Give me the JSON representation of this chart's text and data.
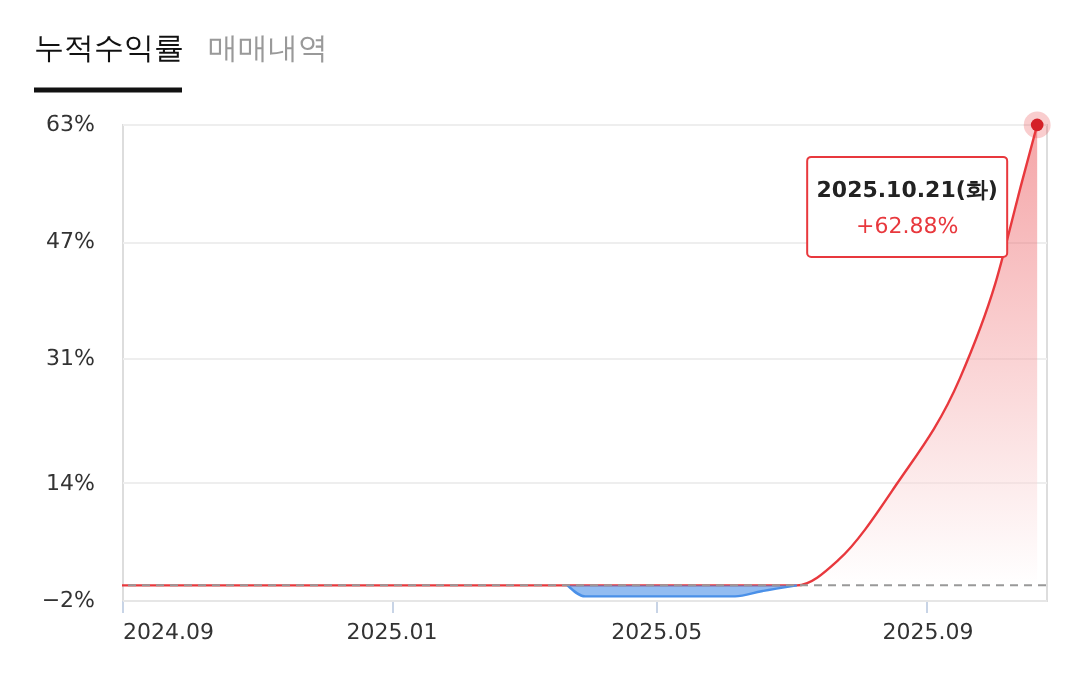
{
  "chart_data": {
    "type": "area",
    "title": "누적수익률",
    "subtitle": "매매내역",
    "xlim": [
      "2024-09-01",
      "2025-10-25"
    ],
    "xticks": [
      {
        "value": "2024-09-01",
        "label": "2024.09"
      },
      {
        "value": "2025-01-01",
        "label": "2025.01"
      },
      {
        "value": "2025-05-01",
        "label": "2025.05"
      },
      {
        "value": "2025-09-01",
        "label": "2025.09"
      }
    ],
    "ylim": [
      -2,
      63
    ],
    "yticks": [
      {
        "value": -2,
        "label": "−2%"
      },
      {
        "value": 14,
        "label": "14%"
      },
      {
        "value": 31,
        "label": "31%"
      },
      {
        "value": 47,
        "label": "47%"
      },
      {
        "value": 63,
        "label": "63%"
      }
    ],
    "grid": "y",
    "legend": false,
    "series": [
      {
        "color": "#e8383d",
        "x": [
          "2024-09-01",
          "2025-03-22",
          "2025-07-04",
          "2025-07-23",
          "2025-08-18",
          "2025-09-16",
          "2025-10-02",
          "2025-10-14",
          "2025-10-21"
        ],
        "values": [
          0,
          0,
          0,
          3.5,
          13.7,
          28.3,
          41.2,
          55,
          62.88
        ]
      },
      {
        "color": "#4a90e8",
        "x": [
          "2025-03-22",
          "2025-03-30",
          "2025-06-06",
          "2025-06-18",
          "2025-07-04"
        ],
        "values": [
          0,
          -1.5,
          -1.5,
          -0.8,
          0
        ]
      }
    ],
    "ref_lines": [
      {
        "axis": "y",
        "value": 0,
        "color": "#999999",
        "line_style": "dashed"
      }
    ],
    "annotations": [
      {
        "text": "2025.10.21(화)",
        "x": "2025-10-21",
        "y": 62.88
      },
      "+62.88%"
    ]
  }
}
